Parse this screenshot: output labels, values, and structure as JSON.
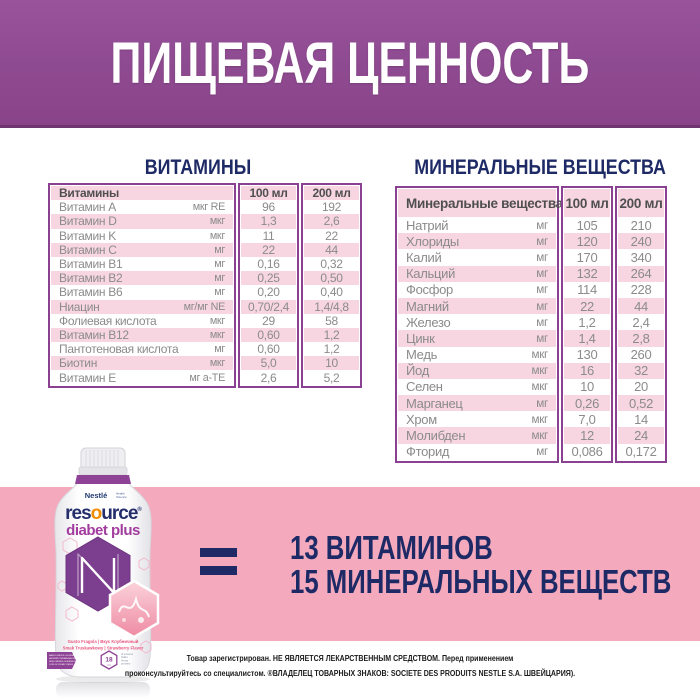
{
  "header": {
    "title": "ПИЩЕВАЯ ЦЕННОСТЬ"
  },
  "section_titles": {
    "vitamins": "ВИТАМИНЫ",
    "minerals": "МИНЕРАЛЬНЫЕ ВЕЩЕСТВА"
  },
  "vitamins_table": {
    "title": "Витамины",
    "columns": [
      "100 мл",
      "200 мл"
    ],
    "rows": [
      {
        "name": "Витамин A",
        "unit": "мкг RE",
        "per100": "96",
        "per200": "192"
      },
      {
        "name": "Витамин D",
        "unit": "мкг",
        "per100": "1,3",
        "per200": "2,6"
      },
      {
        "name": "Витамин K",
        "unit": "мкг",
        "per100": "11",
        "per200": "22"
      },
      {
        "name": "Витамин C",
        "unit": "мг",
        "per100": "22",
        "per200": "44"
      },
      {
        "name": "Витамин B1",
        "unit": "мг",
        "per100": "0,16",
        "per200": "0,32"
      },
      {
        "name": "Витамин B2",
        "unit": "мг",
        "per100": "0,25",
        "per200": "0,50"
      },
      {
        "name": "Витамин B6",
        "unit": "мг",
        "per100": "0,20",
        "per200": "0,40"
      },
      {
        "name": "Ниацин",
        "unit": "мг/мг NE",
        "per100": "0,70/2,4",
        "per200": "1,4/4,8"
      },
      {
        "name": "Фолиевая кислота",
        "unit": "мкг",
        "per100": "29",
        "per200": "58"
      },
      {
        "name": "Витамин B12",
        "unit": "мкг",
        "per100": "0,60",
        "per200": "1,2"
      },
      {
        "name": "Пантотеновая кислота",
        "unit": "мг",
        "per100": "0,60",
        "per200": "1,2"
      },
      {
        "name": "Биотин",
        "unit": "мкг",
        "per100": "5,0",
        "per200": "10"
      },
      {
        "name": "Витамин E",
        "unit": "мг a-TE",
        "per100": "2,6",
        "per200": "5,2"
      }
    ]
  },
  "minerals_table": {
    "title": "Минеральные вещества",
    "columns": [
      "100 мл",
      "200 мл"
    ],
    "rows": [
      {
        "name": "Натрий",
        "unit": "мг",
        "per100": "105",
        "per200": "210"
      },
      {
        "name": "Хлориды",
        "unit": "мг",
        "per100": "120",
        "per200": "240"
      },
      {
        "name": "Калий",
        "unit": "мг",
        "per100": "170",
        "per200": "340"
      },
      {
        "name": "Кальций",
        "unit": "мг",
        "per100": "132",
        "per200": "264"
      },
      {
        "name": "Фосфор",
        "unit": "мг",
        "per100": "114",
        "per200": "228"
      },
      {
        "name": "Магний",
        "unit": "мг",
        "per100": "22",
        "per200": "44"
      },
      {
        "name": "Железо",
        "unit": "мг",
        "per100": "1,2",
        "per200": "2,4"
      },
      {
        "name": "Цинк",
        "unit": "мг",
        "per100": "1,4",
        "per200": "2,8"
      },
      {
        "name": "Медь",
        "unit": "мкг",
        "per100": "130",
        "per200": "260"
      },
      {
        "name": "Йод",
        "unit": "мкг",
        "per100": "16",
        "per200": "32"
      },
      {
        "name": "Селен",
        "unit": "мкг",
        "per100": "10",
        "per200": "20"
      },
      {
        "name": "Марганец",
        "unit": "мг",
        "per100": "0,26",
        "per200": "0,52"
      },
      {
        "name": "Хром",
        "unit": "мкг",
        "per100": "7,0",
        "per200": "14"
      },
      {
        "name": "Молибден",
        "unit": "мкг",
        "per100": "12",
        "per200": "24"
      },
      {
        "name": "Фторид",
        "unit": "мг",
        "per100": "0,086",
        "per200": "0,172"
      }
    ]
  },
  "claims": {
    "line1": "13 ВИТАМИНОВ",
    "line2": "15 МИНЕРАЛЬНЫХ ВЕЩЕСТВ"
  },
  "bottle": {
    "brand": "Nestlé",
    "brand_sub1": "Health",
    "brand_sub2": "Science",
    "logo_res": "res",
    "logo_o": "o",
    "logo_urce": "urce",
    "logo_reg": "®",
    "product_line": "diabet plus",
    "flavor_line1": "Gusto Fragola | Вкус Клубничный",
    "flavor_line2": "Smak Truskawkowy | Strawberry Flavor",
    "ribbon_lines": [
      "BASSO INDICE GLICEMICO",
      "НИЗКИЙ ГЛИКЕМИЧЕСКИЙ ИНДЕКС (30)",
      "NISKI INDEKS GLIKEMICZNY",
      "LOW GLYCEMIC INDEX"
    ],
    "badge_value": "18",
    "badge_unit": "г/л",
    "protein_lines": [
      "di proteine",
      "białko",
      "белка",
      "proteins"
    ]
  },
  "footnote": {
    "line1": "Товар зарегистрирован. НЕ ЯВЛЯЕТСЯ ЛЕКАРСТВЕННЫМ СРЕДСТВОМ. Перед применением",
    "line2": "проконсультируйтесь со специалистом. ®ВЛАДЕЛЕЦ ТОВАРНЫХ ЗНАКОВ: SOCIETE DES PRODUITS NESTLE S.A. ШВЕЙЦАРИЯ)."
  },
  "colors": {
    "banner_purple": "#8e4a90",
    "navy": "#1e2a66",
    "pink_band": "#f4a9bd",
    "table_border": "#8b4191",
    "pink_row": "#f8d6e1",
    "value_text": "#8b8b8b",
    "brand_orange": "#f28c00",
    "brand_purple": "#a23c9e"
  }
}
